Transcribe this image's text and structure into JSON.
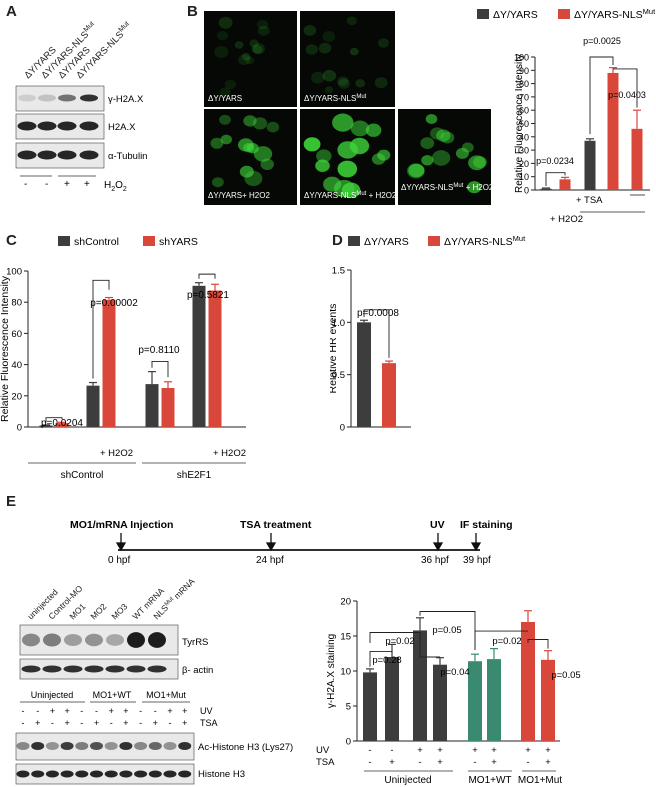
{
  "panel_letters": [
    "A",
    "B",
    "C",
    "D",
    "E"
  ],
  "panel_a": {
    "lanes": [
      "ΔY/YARS",
      "ΔY/YARS-NLS",
      "ΔY/YARS",
      "ΔY/YARS-NLS"
    ],
    "lane_sup": [
      "",
      "Mut",
      "",
      "Mut"
    ],
    "rows": [
      "γ-H2A.X",
      "H2A.X",
      "α-Tubulin"
    ],
    "treat_symbols": [
      "-",
      "-",
      "+",
      "+"
    ],
    "treat_label": "H",
    "treat_sub": "2",
    "treat_suffix": "O",
    "treat_sub2": "2",
    "band_intensity": {
      "gamma": [
        0.12,
        0.18,
        0.55,
        0.85
      ],
      "h2ax": [
        0.9,
        0.9,
        0.9,
        0.9
      ],
      "tub": [
        0.9,
        0.9,
        0.9,
        0.9
      ]
    }
  },
  "panel_b": {
    "images": [
      {
        "label": "ΔY/YARS",
        "sup": "",
        "extra": ""
      },
      {
        "label": "ΔY/YARS-NLS",
        "sup": "Mut",
        "extra": ""
      },
      {
        "label": "ΔY/YARS+ H2O2",
        "sup": "",
        "extra": ""
      },
      {
        "label": "ΔY/YARS-NLS",
        "sup": "Mut",
        "extra": " + H2O2"
      },
      {
        "label": "ΔY/YARS-NLS",
        "sup": "Mut",
        "extra": " + H2O2 + TSA"
      }
    ],
    "legend": [
      {
        "name": "ΔY/YARS",
        "color": "#3d3d3d"
      },
      {
        "name": "ΔY/YARS-NLS",
        "sup": "Mut",
        "color": "#d9473a"
      }
    ],
    "tsa_label": "+ TSA",
    "h2o2_label": "+ H2O2"
  },
  "panel_c": {
    "legend": [
      {
        "name": "shControl",
        "color": "#3d3d3d"
      },
      {
        "name": "shYARS",
        "color": "#d9473a"
      }
    ],
    "h2o2_label": "+ H2O2",
    "groups": [
      "shControl",
      "shE2F1"
    ]
  },
  "panel_d": {
    "legend": [
      {
        "name": "ΔY/YARS",
        "color": "#3d3d3d"
      },
      {
        "name": "ΔY/YARS-NLS",
        "sup": "Mut",
        "color": "#d9473a"
      }
    ]
  },
  "panel_e": {
    "timeline": {
      "events": [
        "MO1/mRNA Injection",
        "TSA treatment",
        "UV",
        "IF staining"
      ],
      "ticks": [
        "0 hpf",
        "24 hpf",
        "36 hpf",
        "39 hpf"
      ]
    },
    "blot1": {
      "lanes": [
        "uninjected",
        "Control-MO",
        "MO1",
        "MO2",
        "MO3",
        "WT mRNA",
        "NLS"
      ],
      "lane_last_sup": "Mut",
      "lane_last_suffix": " mRNA",
      "rows": [
        "TyrRS",
        "β- actin"
      ],
      "band_intensity": {
        "tyrrs": [
          0.45,
          0.5,
          0.35,
          0.4,
          0.3,
          0.95,
          0.95
        ],
        "actin": [
          0.85,
          0.85,
          0.85,
          0.85,
          0.85,
          0.85,
          0.85
        ]
      }
    },
    "blot2": {
      "groups": [
        "Uninjected",
        "MO1+WT",
        "MO1+Mut"
      ],
      "uv_row": [
        "-",
        "-",
        "+",
        "+",
        "-",
        "-",
        "+",
        "+",
        "-",
        "-",
        "+",
        "+"
      ],
      "tsa_row": [
        "-",
        "+",
        "-",
        "+",
        "-",
        "+",
        "-",
        "+",
        "-",
        "+",
        "-",
        "+"
      ],
      "uv_label": "UV",
      "tsa_label": "TSA",
      "rows": [
        "Ac-Histone H3 (Lys27)",
        "Histone H3"
      ],
      "band_intensity": {
        "ac": [
          0.45,
          0.85,
          0.4,
          0.8,
          0.5,
          0.7,
          0.4,
          0.85,
          0.45,
          0.6,
          0.4,
          0.85
        ],
        "h3": [
          0.9,
          0.9,
          0.9,
          0.9,
          0.9,
          0.9,
          0.9,
          0.9,
          0.9,
          0.9,
          0.9,
          0.9
        ]
      }
    },
    "chart_groups": [
      "Uninjected",
      "MO1+WT",
      "MO1+Mut"
    ],
    "uv_label": "UV",
    "tsa_label": "TSA"
  },
  "chart_data": [
    {
      "id": "B",
      "type": "bar",
      "ylabel": "Relative Fluorescence Intensity",
      "ylim": [
        0,
        100
      ],
      "yticks": [
        0,
        10,
        20,
        30,
        40,
        50,
        60,
        70,
        80,
        90,
        100
      ],
      "bars": [
        {
          "value": 1,
          "err": 0.5,
          "color": "#3d3d3d"
        },
        {
          "value": 8,
          "err": 1.5,
          "color": "#d9473a"
        },
        {
          "value": 37,
          "err": 1.5,
          "color": "#3d3d3d"
        },
        {
          "value": 88,
          "err": 4,
          "color": "#d9473a"
        },
        {
          "value": 46,
          "err": 14,
          "color": "#d9473a"
        }
      ],
      "annotations": [
        "p=0.0234",
        "p=0.0025",
        "p=0.0403"
      ]
    },
    {
      "id": "C",
      "type": "bar",
      "ylabel": "Relative Fluorescence Intensity",
      "ylim": [
        0,
        100
      ],
      "yticks": [
        0,
        20,
        40,
        60,
        80,
        100
      ],
      "bars": [
        {
          "value": 1,
          "err": 0.3,
          "color": "#3d3d3d"
        },
        {
          "value": 2.5,
          "err": 0.5,
          "color": "#d9473a"
        },
        {
          "value": 26.5,
          "err": 2,
          "color": "#3d3d3d"
        },
        {
          "value": 81.5,
          "err": 1.5,
          "color": "#d9473a"
        },
        {
          "value": 27.5,
          "err": 8,
          "color": "#3d3d3d"
        },
        {
          "value": 25,
          "err": 4,
          "color": "#d9473a"
        },
        {
          "value": 90.5,
          "err": 2,
          "color": "#3d3d3d"
        },
        {
          "value": 87.5,
          "err": 4,
          "color": "#d9473a"
        }
      ],
      "annotations": [
        "p=0.0204",
        "p=0.00002",
        "p=0.8110",
        "p=0.5821"
      ]
    },
    {
      "id": "D",
      "type": "bar",
      "ylabel": "Relative HR events",
      "ylim": [
        0,
        1.5
      ],
      "yticks": [
        0,
        0.5,
        1.0,
        1.5
      ],
      "ytick_labels": [
        "0",
        "0.5",
        "1.0",
        "1.5"
      ],
      "bars": [
        {
          "value": 1.0,
          "err": 0.02,
          "color": "#3d3d3d"
        },
        {
          "value": 0.61,
          "err": 0.02,
          "color": "#d9473a"
        }
      ],
      "annotations": [
        "p=0.0008"
      ]
    },
    {
      "id": "E",
      "type": "bar",
      "ylabel": "γ-H2A.X staining",
      "ylim": [
        0,
        20
      ],
      "yticks": [
        0,
        5,
        10,
        15,
        20
      ],
      "bars": [
        {
          "value": 9.8,
          "err": 0.5,
          "color": "#3d3d3d"
        },
        {
          "value": 12,
          "err": 1.8,
          "color": "#3d3d3d"
        },
        {
          "value": 15.8,
          "err": 1.8,
          "color": "#3d3d3d"
        },
        {
          "value": 10.9,
          "err": 1,
          "color": "#3d3d3d"
        },
        {
          "value": 11.4,
          "err": 1,
          "color": "#3a8a72"
        },
        {
          "value": 11.7,
          "err": 1.5,
          "color": "#3a8a72"
        },
        {
          "value": 17,
          "err": 1.6,
          "color": "#d9473a"
        },
        {
          "value": 11.6,
          "err": 1.3,
          "color": "#d9473a"
        }
      ],
      "uv": [
        "-",
        "-",
        "+",
        "+",
        "+",
        "+",
        "+",
        "+"
      ],
      "tsa": [
        "-",
        "+",
        "-",
        "+",
        "-",
        "+",
        "-",
        "+"
      ],
      "annotations": [
        "p=0.28",
        "p=0.02",
        "p=0.04",
        "p=0.05",
        "p=0.02",
        "p=0.05"
      ]
    }
  ]
}
